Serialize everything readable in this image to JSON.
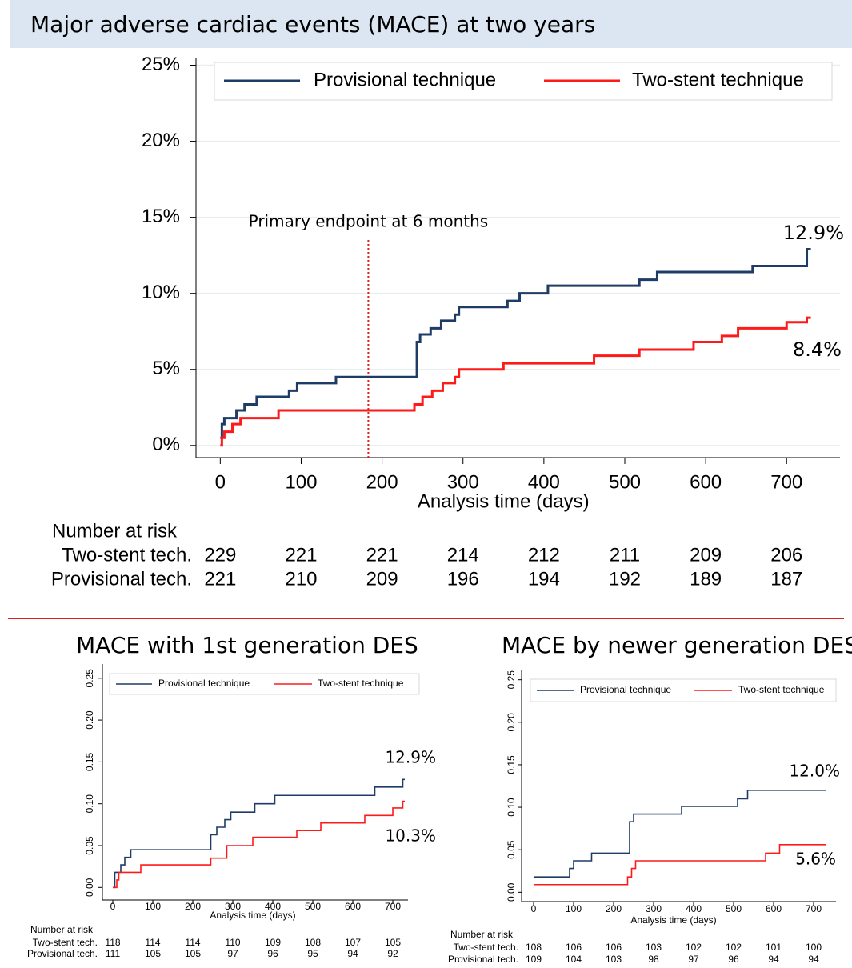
{
  "chart_data": [
    {
      "type": "line",
      "title": "Major adverse cardiac events (MACE) at two years",
      "xlabel": "Analysis time (days)",
      "xlim": [
        -30,
        766
      ],
      "ylim": [
        -0.8,
        25.5
      ],
      "xticks": [
        0,
        100,
        200,
        300,
        400,
        500,
        600,
        700
      ],
      "yticks": [
        {
          "value": 0,
          "label": "0%"
        },
        {
          "value": 5,
          "label": "5%"
        },
        {
          "value": 10,
          "label": "10%"
        },
        {
          "value": 15,
          "label": "15%"
        },
        {
          "value": 20,
          "label": "20%"
        },
        {
          "value": 25,
          "label": "25%"
        }
      ],
      "grid": true,
      "series": [
        {
          "name": "Provisional technique",
          "color": "#1f3c66",
          "end_label": "12.9%",
          "x": [
            0,
            2,
            2,
            5,
            5,
            20,
            20,
            30,
            30,
            45,
            45,
            85,
            85,
            95,
            95,
            143,
            143,
            243,
            243,
            247,
            247,
            260,
            260,
            273,
            273,
            290,
            290,
            295,
            295,
            355,
            355,
            370,
            370,
            405,
            405,
            518,
            518,
            540,
            540,
            658,
            658,
            725,
            725,
            730
          ],
          "values": [
            0.5,
            0.5,
            1.4,
            1.4,
            1.8,
            1.8,
            2.3,
            2.3,
            2.7,
            2.7,
            3.2,
            3.2,
            3.6,
            3.6,
            4.1,
            4.1,
            4.5,
            4.5,
            6.8,
            6.8,
            7.3,
            7.3,
            7.7,
            7.7,
            8.2,
            8.2,
            8.6,
            8.6,
            9.1,
            9.1,
            9.5,
            9.5,
            10.0,
            10.0,
            10.5,
            10.5,
            10.9,
            10.9,
            11.4,
            11.4,
            11.8,
            11.8,
            12.9,
            12.9
          ]
        },
        {
          "name": "Two-stent technique",
          "color": "#ff1a1a",
          "end_label": "8.4%",
          "x": [
            0,
            2,
            2,
            5,
            5,
            15,
            15,
            25,
            25,
            72,
            72,
            240,
            240,
            250,
            250,
            262,
            262,
            275,
            275,
            290,
            290,
            295,
            295,
            350,
            350,
            462,
            462,
            518,
            518,
            585,
            585,
            620,
            620,
            640,
            640,
            700,
            700,
            725,
            725,
            730
          ],
          "values": [
            0,
            0,
            0.5,
            0.5,
            0.9,
            0.9,
            1.4,
            1.4,
            1.8,
            1.8,
            2.3,
            2.3,
            2.7,
            2.7,
            3.2,
            3.2,
            3.6,
            3.6,
            4.1,
            4.1,
            4.5,
            4.5,
            5.0,
            5.0,
            5.4,
            5.4,
            5.9,
            5.9,
            6.3,
            6.3,
            6.8,
            6.8,
            7.2,
            7.2,
            7.7,
            7.7,
            8.1,
            8.1,
            8.4,
            8.4
          ]
        }
      ],
      "annotation": {
        "text": "Primary endpoint at 6 months",
        "x": 183
      },
      "risk_table": {
        "title": "Number at risk",
        "rows": [
          {
            "label": "Two-stent tech.",
            "values": [
              229,
              221,
              221,
              214,
              212,
              211,
              209,
              206
            ]
          },
          {
            "label": "Provisional tech.",
            "values": [
              221,
              210,
              209,
              196,
              194,
              192,
              189,
              187
            ]
          }
        ]
      }
    },
    {
      "type": "line",
      "title": "MACE with 1st generation DES",
      "xlabel": "Analysis time (days)",
      "xlim": [
        -26,
        738
      ],
      "ylim": [
        -0.015,
        0.267
      ],
      "xticks": [
        0,
        100,
        200,
        300,
        400,
        500,
        600,
        700
      ],
      "yticks": [
        {
          "value": 0,
          "label": "0.00"
        },
        {
          "value": 0.05,
          "label": "0.05"
        },
        {
          "value": 0.1,
          "label": "0.10"
        },
        {
          "value": 0.15,
          "label": "0.15"
        },
        {
          "value": 0.2,
          "label": "0.20"
        },
        {
          "value": 0.25,
          "label": "0.25"
        }
      ],
      "grid": false,
      "series": [
        {
          "name": "Provisional technique",
          "color": "#1f3c66",
          "end_label": "12.9%",
          "x": [
            0,
            5,
            5,
            20,
            20,
            30,
            30,
            45,
            45,
            245,
            245,
            260,
            260,
            280,
            280,
            295,
            295,
            355,
            355,
            405,
            405,
            655,
            655,
            725,
            725,
            730
          ],
          "values": [
            0,
            0,
            0.018,
            0.018,
            0.027,
            0.027,
            0.036,
            0.036,
            0.045,
            0.045,
            0.063,
            0.063,
            0.072,
            0.072,
            0.081,
            0.081,
            0.09,
            0.09,
            0.1,
            0.1,
            0.11,
            0.11,
            0.12,
            0.12,
            0.129,
            0.129
          ]
        },
        {
          "name": "Two-stent technique",
          "color": "#ff1a1a",
          "end_label": "10.3%",
          "x": [
            0,
            10,
            10,
            15,
            15,
            70,
            70,
            245,
            245,
            285,
            285,
            350,
            350,
            460,
            460,
            520,
            520,
            630,
            630,
            700,
            700,
            725,
            725,
            730
          ],
          "values": [
            0,
            0,
            0.009,
            0.009,
            0.018,
            0.018,
            0.027,
            0.027,
            0.035,
            0.035,
            0.05,
            0.05,
            0.06,
            0.06,
            0.068,
            0.068,
            0.077,
            0.077,
            0.086,
            0.086,
            0.095,
            0.095,
            0.103,
            0.103
          ]
        }
      ],
      "risk_table": {
        "title": "Number at risk",
        "rows": [
          {
            "label": "Two-stent tech.",
            "values": [
              118,
              114,
              114,
              110,
              109,
              108,
              107,
              105
            ]
          },
          {
            "label": "Provisional tech.",
            "values": [
              111,
              105,
              105,
              97,
              96,
              95,
              94,
              92
            ]
          }
        ]
      }
    },
    {
      "type": "line",
      "title": "MACE by newer generation DES",
      "xlabel": "Analysis time (days)",
      "xlim": [
        -30,
        756
      ],
      "ylim": [
        -0.011,
        0.261
      ],
      "xticks": [
        0,
        100,
        200,
        300,
        400,
        500,
        600,
        700
      ],
      "yticks": [
        {
          "value": 0,
          "label": "0.00"
        },
        {
          "value": 0.05,
          "label": "0.05"
        },
        {
          "value": 0.1,
          "label": "0.10"
        },
        {
          "value": 0.15,
          "label": "0.15"
        },
        {
          "value": 0.2,
          "label": "0.20"
        },
        {
          "value": 0.25,
          "label": "0.25"
        }
      ],
      "grid": false,
      "series": [
        {
          "name": "Provisional technique",
          "color": "#1f3c66",
          "end_label": "12.0%",
          "x": [
            0,
            90,
            90,
            100,
            100,
            145,
            145,
            240,
            240,
            250,
            250,
            370,
            370,
            510,
            510,
            535,
            535,
            730
          ],
          "values": [
            0.018,
            0.018,
            0.028,
            0.028,
            0.037,
            0.037,
            0.046,
            0.046,
            0.083,
            0.083,
            0.092,
            0.092,
            0.101,
            0.101,
            0.11,
            0.11,
            0.12,
            0.12
          ]
        },
        {
          "name": "Two-stent technique",
          "color": "#ff1a1a",
          "end_label": "5.6%",
          "x": [
            0,
            235,
            235,
            245,
            245,
            255,
            255,
            580,
            580,
            615,
            615,
            730
          ],
          "values": [
            0.009,
            0.009,
            0.018,
            0.018,
            0.028,
            0.028,
            0.037,
            0.037,
            0.046,
            0.046,
            0.056,
            0.056
          ]
        }
      ],
      "risk_table": {
        "title": "Number at risk",
        "rows": [
          {
            "label": "Two-stent tech.",
            "values": [
              108,
              106,
              106,
              103,
              102,
              102,
              101,
              100
            ]
          },
          {
            "label": "Provisional tech.",
            "values": [
              109,
              104,
              103,
              98,
              97,
              96,
              94,
              94
            ]
          }
        ]
      }
    }
  ]
}
